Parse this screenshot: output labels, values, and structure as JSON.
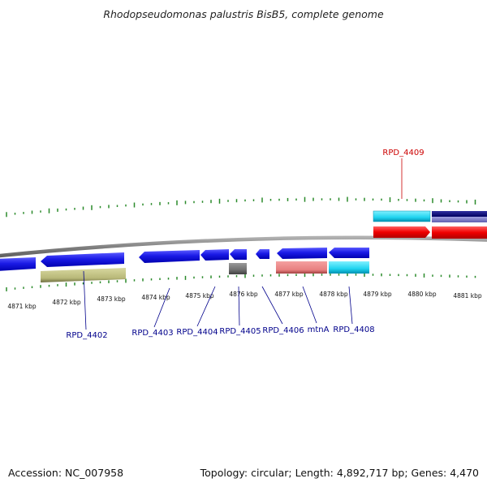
{
  "header": {
    "title": "Rhodopseudomonas palustris BisB5, complete genome"
  },
  "footer": {
    "accession": "Accession: NC_007958",
    "summary": "Topology: circular; Length: 4,892,717 bp; Genes: 4,470"
  },
  "axis": {
    "ticks": [
      "4871 kbp",
      "4872 kbp",
      "4873 kbp",
      "4874 kbp",
      "4875 kbp",
      "4876 kbp",
      "4877 kbp",
      "4878 kbp",
      "4879 kbp",
      "4880 kbp",
      "4881 kbp"
    ]
  },
  "genes": [
    {
      "label": "RPD_4402",
      "color": "#00008b"
    },
    {
      "label": "RPD_4403",
      "color": "#00008b"
    },
    {
      "label": "RPD_4404",
      "color": "#00008b"
    },
    {
      "label": "RPD_4405",
      "color": "#00008b"
    },
    {
      "label": "RPD_4406",
      "color": "#00008b"
    },
    {
      "label": "mtnA",
      "color": "#00008b"
    },
    {
      "label": "RPD_4408",
      "color": "#00008b"
    },
    {
      "label": "RPD_4409",
      "color": "#cc0000"
    }
  ],
  "colors": {
    "gene_blue": "#1010e0",
    "gc_green": "#2a8a2a",
    "backbone": "#888888"
  }
}
